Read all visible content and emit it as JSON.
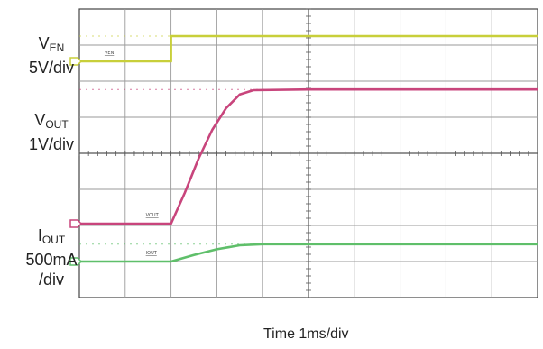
{
  "chart_data": {
    "type": "line",
    "xlabel": "Time 1ms/div",
    "grid": true,
    "divisions": {
      "x": 10,
      "y": 8
    },
    "channels": [
      {
        "id": "ven",
        "label_main": "V",
        "label_sub": "EN",
        "label_scale": "5V/div",
        "marker_text": "VEN",
        "color": "#c8cf3a",
        "points": [
          [
            0,
            0.55
          ],
          [
            2.0,
            0.55
          ],
          [
            2.0,
            1.25
          ],
          [
            10,
            1.25
          ]
        ]
      },
      {
        "id": "vout",
        "label_main": "V",
        "label_sub": "OUT",
        "label_scale": "1V/div",
        "marker_text": "VOUT",
        "color": "#c8457c",
        "points": [
          [
            0,
            0
          ],
          [
            2.0,
            0
          ],
          [
            2.3,
            0.85
          ],
          [
            2.6,
            1.8
          ],
          [
            2.9,
            2.6
          ],
          [
            3.2,
            3.2
          ],
          [
            3.5,
            3.58
          ],
          [
            3.8,
            3.7
          ],
          [
            5,
            3.72
          ],
          [
            10,
            3.72
          ]
        ]
      },
      {
        "id": "iout",
        "label_main": "I",
        "label_sub": "OUT",
        "label_scale_lines": [
          "500mA",
          "/div"
        ],
        "marker_text": "IOUT",
        "color": "#5fbf6a",
        "points": [
          [
            0,
            0
          ],
          [
            2.0,
            0
          ],
          [
            2.5,
            0.18
          ],
          [
            3.0,
            0.34
          ],
          [
            3.5,
            0.45
          ],
          [
            4.0,
            0.48
          ],
          [
            10,
            0.48
          ]
        ]
      }
    ]
  }
}
